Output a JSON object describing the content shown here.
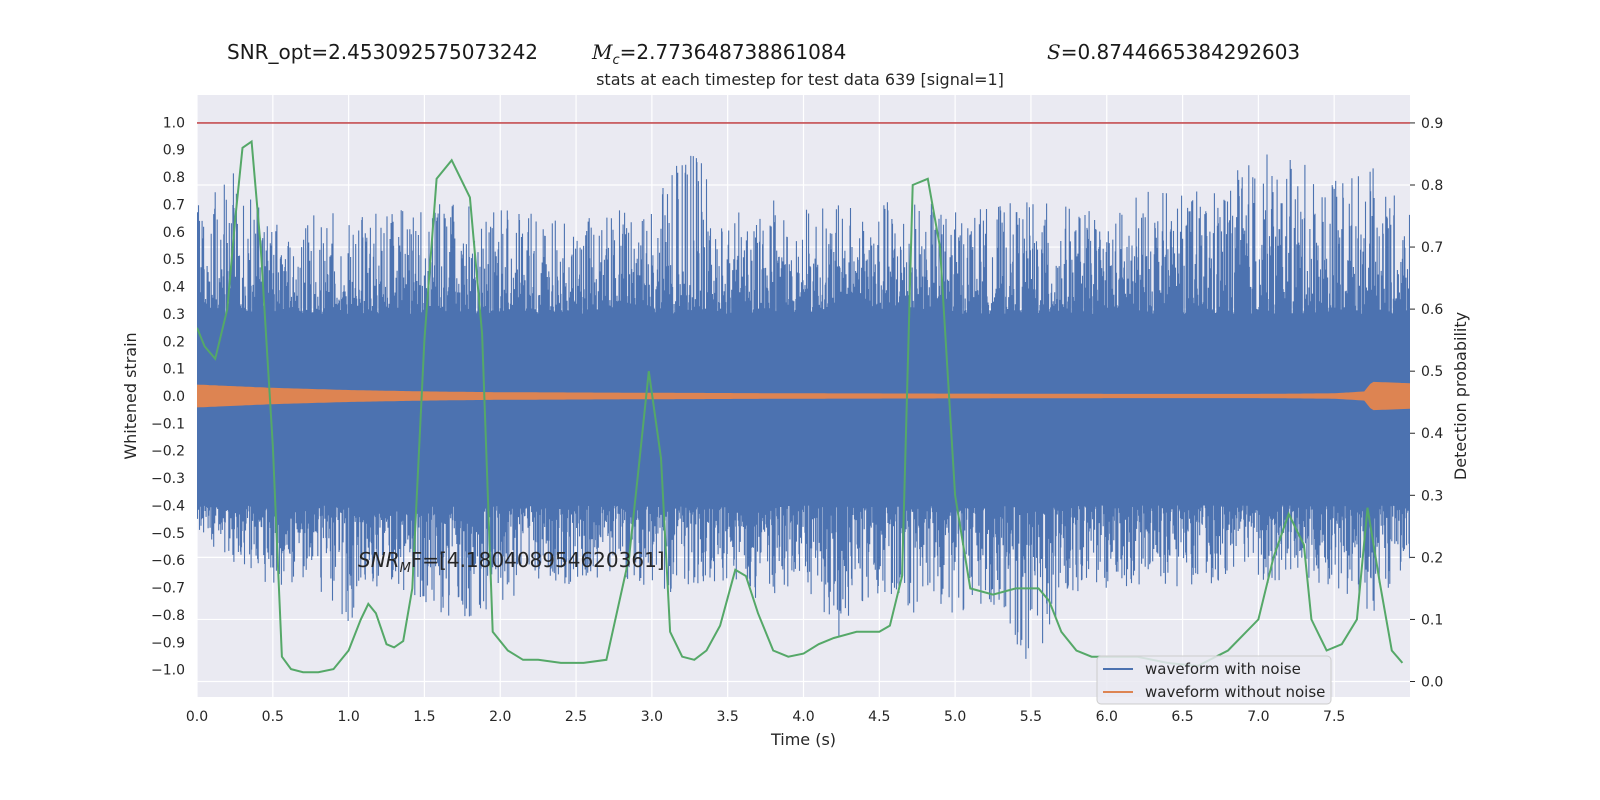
{
  "header": {
    "snr_opt": "SNR_opt=2.453092575073242",
    "mc_symbol": "M",
    "mc_sub": "c",
    "mc_value": "=2.773648738861084",
    "s_symbol": "S",
    "s_value": "=0.8744665384292603"
  },
  "annotation": {
    "snr_symbol": "SNR",
    "snr_sub": "M",
    "snr_rest": "F=[4.180408954620361]"
  },
  "chart_data": {
    "type": "line",
    "title": "stats at each timestep for test data 639 [signal=1]",
    "xlabel": "Time (s)",
    "ylabel": "Whitened strain",
    "y2label": "Detection probability",
    "xlim": [
      0,
      8
    ],
    "ylim": [
      -1.1,
      1.1
    ],
    "y2lim": [
      -0.025,
      0.945
    ],
    "xticks": [
      "0.0",
      "0.5",
      "1.0",
      "1.5",
      "2.0",
      "2.5",
      "3.0",
      "3.5",
      "4.0",
      "4.5",
      "5.0",
      "5.5",
      "6.0",
      "6.5",
      "7.0",
      "7.5"
    ],
    "yticks": [
      "1.0",
      "0.9",
      "0.8",
      "0.7",
      "0.6",
      "0.5",
      "0.4",
      "0.3",
      "0.2",
      "0.1",
      "0.0",
      "−0.1",
      "−0.2",
      "−0.3",
      "−0.4",
      "−0.5",
      "−0.6",
      "−0.7",
      "−0.8",
      "−0.9",
      "−1.0"
    ],
    "y2ticks": [
      "0.9",
      "0.8",
      "0.7",
      "0.6",
      "0.5",
      "0.4",
      "0.3",
      "0.2",
      "0.1",
      "0.0"
    ],
    "grid": true,
    "legend_position": "lower-right",
    "series": [
      {
        "name": "waveform with noise",
        "color": "#4c72b0",
        "axis": "left",
        "envelope_x": [
          0.0,
          0.25,
          0.5,
          0.75,
          1.0,
          1.25,
          1.5,
          1.75,
          2.0,
          2.25,
          2.5,
          2.75,
          3.0,
          3.25,
          3.5,
          3.75,
          4.0,
          4.25,
          4.5,
          4.75,
          5.0,
          5.25,
          5.5,
          5.75,
          6.0,
          6.25,
          6.5,
          6.75,
          7.0,
          7.25,
          7.5,
          7.75,
          8.0
        ],
        "envelope_upper": [
          0.7,
          0.82,
          0.62,
          0.68,
          0.66,
          0.71,
          0.69,
          0.75,
          0.7,
          0.66,
          0.64,
          0.68,
          0.7,
          0.94,
          0.66,
          0.72,
          0.7,
          0.7,
          0.72,
          0.72,
          0.68,
          0.7,
          0.72,
          0.7,
          0.66,
          0.76,
          0.74,
          0.78,
          0.9,
          0.86,
          0.82,
          0.84,
          0.66
        ],
        "envelope_lower": [
          -0.5,
          -0.62,
          -0.7,
          -0.67,
          -0.84,
          -0.66,
          -0.78,
          -0.84,
          -0.76,
          -0.68,
          -0.7,
          -0.66,
          -0.72,
          -0.72,
          -0.72,
          -0.75,
          -0.72,
          -0.9,
          -0.72,
          -0.8,
          -0.8,
          -0.76,
          -1.0,
          -0.72,
          -0.74,
          -0.7,
          -0.7,
          -0.68,
          -0.7,
          -0.66,
          -0.7,
          -0.8,
          -0.62
        ]
      },
      {
        "name": "waveform without noise",
        "color": "#dd8452",
        "axis": "left",
        "amplitude_x": [
          0.0,
          0.5,
          1.0,
          1.5,
          2.0,
          3.0,
          4.0,
          5.0,
          6.0,
          7.0,
          7.5,
          7.7,
          7.75,
          8.0
        ],
        "amplitude": [
          0.04,
          0.028,
          0.02,
          0.015,
          0.012,
          0.01,
          0.008,
          0.007,
          0.006,
          0.006,
          0.008,
          0.015,
          0.05,
          0.045
        ]
      },
      {
        "name": "",
        "color": "#55a868",
        "axis": "right",
        "x": [
          0.0,
          0.05,
          0.12,
          0.2,
          0.25,
          0.3,
          0.36,
          0.42,
          0.5,
          0.56,
          0.62,
          0.7,
          0.8,
          0.9,
          1.0,
          1.08,
          1.13,
          1.18,
          1.25,
          1.3,
          1.36,
          1.42,
          1.5,
          1.58,
          1.68,
          1.8,
          1.88,
          1.95,
          2.05,
          2.15,
          2.25,
          2.4,
          2.55,
          2.7,
          2.85,
          2.92,
          2.98,
          3.06,
          3.12,
          3.2,
          3.28,
          3.36,
          3.45,
          3.55,
          3.62,
          3.7,
          3.8,
          3.9,
          4.0,
          4.1,
          4.2,
          4.35,
          4.5,
          4.57,
          4.65,
          4.72,
          4.82,
          4.9,
          5.0,
          5.1,
          5.25,
          5.4,
          5.55,
          5.62,
          5.7,
          5.8,
          5.9,
          6.0,
          6.2,
          6.4,
          6.6,
          6.8,
          7.0,
          7.1,
          7.2,
          7.3,
          7.35,
          7.45,
          7.55,
          7.65,
          7.72,
          7.8,
          7.88,
          7.95
        ],
        "y": [
          0.57,
          0.54,
          0.52,
          0.6,
          0.74,
          0.86,
          0.87,
          0.7,
          0.38,
          0.04,
          0.02,
          0.015,
          0.015,
          0.02,
          0.05,
          0.1,
          0.125,
          0.11,
          0.06,
          0.055,
          0.065,
          0.15,
          0.55,
          0.81,
          0.84,
          0.78,
          0.56,
          0.08,
          0.05,
          0.035,
          0.035,
          0.03,
          0.03,
          0.035,
          0.2,
          0.36,
          0.5,
          0.36,
          0.08,
          0.04,
          0.035,
          0.05,
          0.09,
          0.18,
          0.17,
          0.11,
          0.05,
          0.04,
          0.045,
          0.06,
          0.07,
          0.08,
          0.08,
          0.09,
          0.17,
          0.8,
          0.81,
          0.7,
          0.3,
          0.15,
          0.14,
          0.15,
          0.15,
          0.13,
          0.08,
          0.05,
          0.04,
          0.04,
          0.04,
          0.03,
          0.025,
          0.05,
          0.1,
          0.2,
          0.27,
          0.22,
          0.1,
          0.05,
          0.06,
          0.1,
          0.28,
          0.16,
          0.05,
          0.03
        ]
      }
    ],
    "threshold": {
      "value": 0.9,
      "axis": "right",
      "color": "#c44e52"
    }
  },
  "legend": {
    "items": [
      {
        "label": "waveform with noise",
        "color": "#4c72b0"
      },
      {
        "label": "waveform without noise",
        "color": "#dd8452"
      }
    ]
  },
  "colors": {
    "plot_background": "#eaeaf2",
    "grid": "#ffffff"
  }
}
